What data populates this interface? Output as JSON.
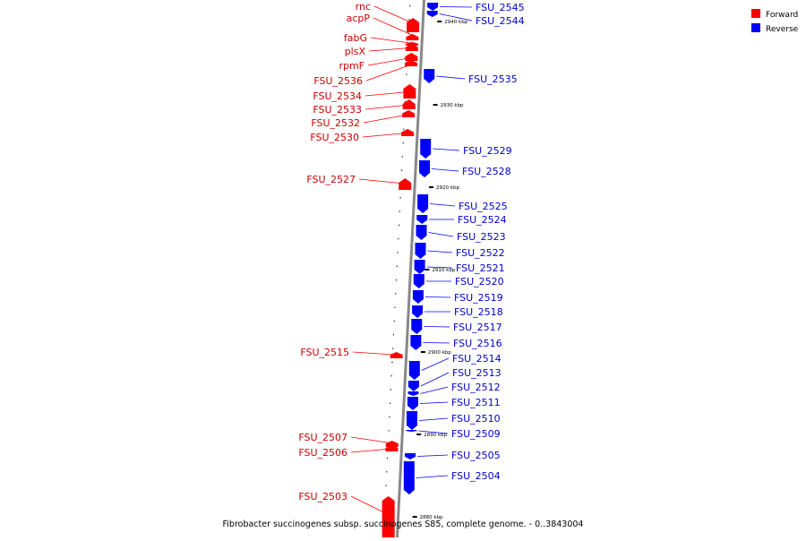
{
  "colors": {
    "forward": "#ff0000",
    "reverse": "#0000ff",
    "backbone": "#888888"
  },
  "legend": [
    {
      "label": "Forward",
      "color": "#ff0000"
    },
    {
      "label": "Reverse",
      "color": "#0000ff"
    }
  ],
  "caption": "Fibrobacter succinogenes subsp. succinogenes S85, complete genome. - 0..3843004",
  "ticks": [
    {
      "kbp": 2940,
      "label": "2940 kbp"
    },
    {
      "kbp": 2930,
      "label": "2930 kbp"
    },
    {
      "kbp": 2920,
      "label": "2920 kbp"
    },
    {
      "kbp": 2910,
      "label": "2910 kbp"
    },
    {
      "kbp": 2900,
      "label": "2900 kbp"
    },
    {
      "kbp": 2890,
      "label": "2890 kbp"
    },
    {
      "kbp": 2880,
      "label": "2880 kbp"
    }
  ],
  "genes": [
    {
      "name": "FSU_2545",
      "strand": "reverse"
    },
    {
      "name": "FSU_2544",
      "strand": "reverse"
    },
    {
      "name": "rnc",
      "strand": "forward"
    },
    {
      "name": "acpP",
      "strand": "forward"
    },
    {
      "name": "fabG",
      "strand": "forward"
    },
    {
      "name": "plsX",
      "strand": "forward"
    },
    {
      "name": "rpmF",
      "strand": "forward"
    },
    {
      "name": "FSU_2536",
      "strand": "forward"
    },
    {
      "name": "FSU_2535",
      "strand": "reverse"
    },
    {
      "name": "FSU_2534",
      "strand": "forward"
    },
    {
      "name": "FSU_2533",
      "strand": "forward"
    },
    {
      "name": "FSU_2532",
      "strand": "forward"
    },
    {
      "name": "FSU_2530",
      "strand": "forward"
    },
    {
      "name": "FSU_2529",
      "strand": "reverse"
    },
    {
      "name": "FSU_2528",
      "strand": "reverse"
    },
    {
      "name": "FSU_2527",
      "strand": "forward"
    },
    {
      "name": "FSU_2525",
      "strand": "reverse"
    },
    {
      "name": "FSU_2524",
      "strand": "reverse"
    },
    {
      "name": "FSU_2523",
      "strand": "reverse"
    },
    {
      "name": "FSU_2522",
      "strand": "reverse"
    },
    {
      "name": "FSU_2521",
      "strand": "reverse"
    },
    {
      "name": "FSU_2520",
      "strand": "reverse"
    },
    {
      "name": "FSU_2519",
      "strand": "reverse"
    },
    {
      "name": "FSU_2518",
      "strand": "reverse"
    },
    {
      "name": "FSU_2517",
      "strand": "reverse"
    },
    {
      "name": "FSU_2516",
      "strand": "reverse"
    },
    {
      "name": "FSU_2515",
      "strand": "forward"
    },
    {
      "name": "FSU_2514",
      "strand": "reverse"
    },
    {
      "name": "FSU_2513",
      "strand": "reverse"
    },
    {
      "name": "FSU_2512",
      "strand": "reverse"
    },
    {
      "name": "FSU_2511",
      "strand": "reverse"
    },
    {
      "name": "FSU_2510",
      "strand": "reverse"
    },
    {
      "name": "FSU_2509",
      "strand": "reverse"
    },
    {
      "name": "FSU_2507",
      "strand": "forward"
    },
    {
      "name": "FSU_2506",
      "strand": "forward"
    },
    {
      "name": "FSU_2505",
      "strand": "reverse"
    },
    {
      "name": "FSU_2504",
      "strand": "reverse"
    },
    {
      "name": "FSU_2503",
      "strand": "forward"
    }
  ]
}
